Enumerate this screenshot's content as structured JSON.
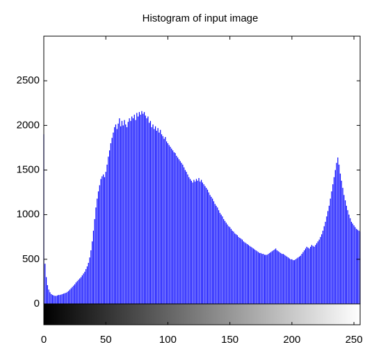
{
  "chart_data": {
    "type": "bar",
    "title": "Histogram of input image",
    "color": "#0000ff",
    "x": [
      0,
      1,
      2,
      3,
      4,
      5,
      6,
      7,
      8,
      9,
      10,
      11,
      12,
      13,
      14,
      15,
      16,
      17,
      18,
      19,
      20,
      21,
      22,
      23,
      24,
      25,
      26,
      27,
      28,
      29,
      30,
      31,
      32,
      33,
      34,
      35,
      36,
      37,
      38,
      39,
      40,
      41,
      42,
      43,
      44,
      45,
      46,
      47,
      48,
      49,
      50,
      51,
      52,
      53,
      54,
      55,
      56,
      57,
      58,
      59,
      60,
      61,
      62,
      63,
      64,
      65,
      66,
      67,
      68,
      69,
      70,
      71,
      72,
      73,
      74,
      75,
      76,
      77,
      78,
      79,
      80,
      81,
      82,
      83,
      84,
      85,
      86,
      87,
      88,
      89,
      90,
      91,
      92,
      93,
      94,
      95,
      96,
      97,
      98,
      99,
      100,
      101,
      102,
      103,
      104,
      105,
      106,
      107,
      108,
      109,
      110,
      111,
      112,
      113,
      114,
      115,
      116,
      117,
      118,
      119,
      120,
      121,
      122,
      123,
      124,
      125,
      126,
      127,
      128,
      129,
      130,
      131,
      132,
      133,
      134,
      135,
      136,
      137,
      138,
      139,
      140,
      141,
      142,
      143,
      144,
      145,
      146,
      147,
      148,
      149,
      150,
      151,
      152,
      153,
      154,
      155,
      156,
      157,
      158,
      159,
      160,
      161,
      162,
      163,
      164,
      165,
      166,
      167,
      168,
      169,
      170,
      171,
      172,
      173,
      174,
      175,
      176,
      177,
      178,
      179,
      180,
      181,
      182,
      183,
      184,
      185,
      186,
      187,
      188,
      189,
      190,
      191,
      192,
      193,
      194,
      195,
      196,
      197,
      198,
      199,
      200,
      201,
      202,
      203,
      204,
      205,
      206,
      207,
      208,
      209,
      210,
      211,
      212,
      213,
      214,
      215,
      216,
      217,
      218,
      219,
      220,
      221,
      222,
      223,
      224,
      225,
      226,
      227,
      228,
      229,
      230,
      231,
      232,
      233,
      234,
      235,
      236,
      237,
      238,
      239,
      240,
      241,
      242,
      243,
      244,
      245,
      246,
      247,
      248,
      249,
      250,
      251,
      252,
      253,
      254,
      255
    ],
    "values": [
      1900,
      450,
      300,
      210,
      160,
      130,
      110,
      100,
      95,
      90,
      90,
      95,
      100,
      100,
      105,
      110,
      115,
      120,
      125,
      135,
      145,
      160,
      175,
      190,
      205,
      220,
      240,
      255,
      270,
      285,
      300,
      320,
      340,
      360,
      390,
      420,
      460,
      520,
      600,
      700,
      820,
      950,
      1080,
      1180,
      1260,
      1330,
      1400,
      1430,
      1450,
      1420,
      1480,
      1560,
      1650,
      1720,
      1800,
      1860,
      1920,
      1980,
      2010,
      1960,
      2020,
      2080,
      1990,
      2050,
      2000,
      2060,
      2010,
      1980,
      2040,
      2080,
      2050,
      2100,
      2080,
      2120,
      2060,
      2140,
      2100,
      2150,
      2120,
      2160,
      2130,
      2150,
      2110,
      2080,
      2100,
      2030,
      2050,
      1980,
      2010,
      1960,
      1990,
      1940,
      1970,
      1920,
      1950,
      1900,
      1880,
      1850,
      1870,
      1820,
      1800,
      1780,
      1760,
      1740,
      1720,
      1700,
      1690,
      1660,
      1640,
      1620,
      1600,
      1580,
      1560,
      1530,
      1500,
      1480,
      1450,
      1420,
      1400,
      1380,
      1360,
      1390,
      1370,
      1400,
      1380,
      1410,
      1370,
      1390,
      1360,
      1340,
      1320,
      1300,
      1280,
      1250,
      1220,
      1200,
      1180,
      1150,
      1120,
      1100,
      1080,
      1050,
      1020,
      1000,
      980,
      950,
      930,
      910,
      890,
      870,
      860,
      840,
      820,
      810,
      790,
      780,
      770,
      750,
      740,
      730,
      720,
      700,
      690,
      680,
      670,
      660,
      650,
      640,
      630,
      620,
      610,
      600,
      590,
      580,
      570,
      570,
      560,
      560,
      550,
      550,
      550,
      560,
      570,
      580,
      590,
      600,
      610,
      620,
      600,
      590,
      580,
      570,
      560,
      560,
      550,
      540,
      530,
      520,
      510,
      500,
      500,
      490,
      490,
      500,
      510,
      520,
      530,
      540,
      560,
      580,
      600,
      620,
      640,
      630,
      620,
      640,
      660,
      650,
      640,
      660,
      680,
      700,
      720,
      750,
      780,
      820,
      870,
      920,
      980,
      1040,
      1100,
      1180,
      1260,
      1340,
      1420,
      1500,
      1580,
      1640,
      1560,
      1460,
      1380,
      1300,
      1220,
      1160,
      1100,
      1050,
      1000,
      960,
      920,
      900,
      880,
      860,
      840,
      830,
      820,
      810
    ],
    "xlim": [
      0,
      255
    ],
    "xticks": [
      0,
      50,
      100,
      150,
      200,
      250
    ],
    "ylim": [
      0,
      3000
    ],
    "yticks": [
      0,
      500,
      1000,
      1500,
      2000,
      2500
    ]
  }
}
